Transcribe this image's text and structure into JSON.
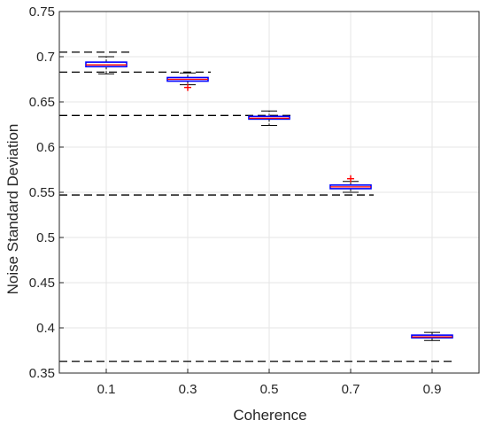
{
  "chart_data": {
    "type": "box",
    "xlabel": "Coherence",
    "ylabel": "Noise Standard Deviation",
    "ylim": [
      0.35,
      0.75
    ],
    "yticks": [
      "0.35",
      "0.4",
      "0.45",
      "0.5",
      "0.55",
      "0.6",
      "0.65",
      "0.7",
      "0.75"
    ],
    "categories": [
      "0.1",
      "0.3",
      "0.5",
      "0.7",
      "0.9"
    ],
    "grid": true,
    "boxes": [
      {
        "category": "0.1",
        "min": 0.681,
        "q1": 0.689,
        "median": 0.691,
        "q3": 0.694,
        "max": 0.7,
        "outliers": []
      },
      {
        "category": "0.3",
        "min": 0.669,
        "q1": 0.673,
        "median": 0.675,
        "q3": 0.677,
        "max": 0.682,
        "outliers": [
          0.666
        ]
      },
      {
        "category": "0.5",
        "min": 0.624,
        "q1": 0.631,
        "median": 0.632,
        "q3": 0.634,
        "max": 0.64,
        "outliers": []
      },
      {
        "category": "0.7",
        "min": 0.55,
        "q1": 0.554,
        "median": 0.556,
        "q3": 0.558,
        "max": 0.562,
        "outliers": [
          0.565
        ]
      },
      {
        "category": "0.9",
        "min": 0.386,
        "q1": 0.389,
        "median": 0.39,
        "q3": 0.392,
        "max": 0.395,
        "outliers": []
      }
    ],
    "reference_lines": [
      {
        "y": 0.705,
        "to_category": "0.1"
      },
      {
        "y": 0.683,
        "to_category": "0.3"
      },
      {
        "y": 0.635,
        "to_category": "0.5"
      },
      {
        "y": 0.547,
        "to_category": "0.7"
      },
      {
        "y": 0.363,
        "to_category": "0.9"
      }
    ],
    "colors": {
      "box": "#0000ff",
      "median": "#ff0000",
      "whisker": "#000000",
      "outlier": "#ff0000",
      "reference": "#000000",
      "grid": "#e6e6e6",
      "axis": "#262626"
    }
  }
}
